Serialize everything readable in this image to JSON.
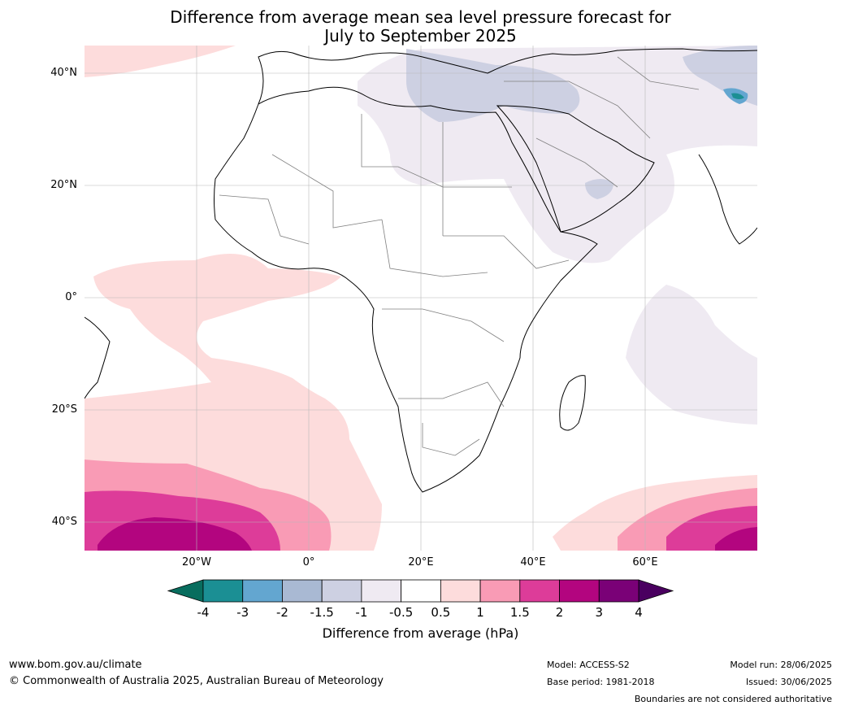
{
  "title_line1": "Difference from average mean sea level pressure forecast for",
  "title_line2": "July to September 2025",
  "lat_labels": [
    "40°N",
    "20°N",
    "0°",
    "20°S",
    "40°S"
  ],
  "lon_labels": [
    "20°W",
    "0°",
    "20°E",
    "40°E",
    "60°E"
  ],
  "colorbar": {
    "label": "Difference from average (hPa)",
    "ticks": [
      "-4",
      "-3",
      "-2",
      "-1.5",
      "-1",
      "-0.5",
      "0.5",
      "1",
      "1.5",
      "2",
      "3",
      "4"
    ],
    "colors": [
      "#1b8f94",
      "#63a6d0",
      "#a9b9d3",
      "#cdd0e2",
      "#efeaf2",
      "#ffffff",
      "#fddcdc",
      "#f99bb5",
      "#dd3c99",
      "#b3057f",
      "#7a0177"
    ],
    "under_color": "#086d5e",
    "over_color": "#4a0060"
  },
  "footer": {
    "website": "www.bom.gov.au/climate",
    "copyright": "© Commonwealth of Australia 2025, Australian Bureau of Meteorology",
    "model": "Model: ACCESS-S2",
    "base_period": "Base period: 1981-2018",
    "model_run": "Model run: 28/06/2025",
    "issued": "Issued: 30/06/2025",
    "disclaimer": "Boundaries are not considered authoritative"
  }
}
